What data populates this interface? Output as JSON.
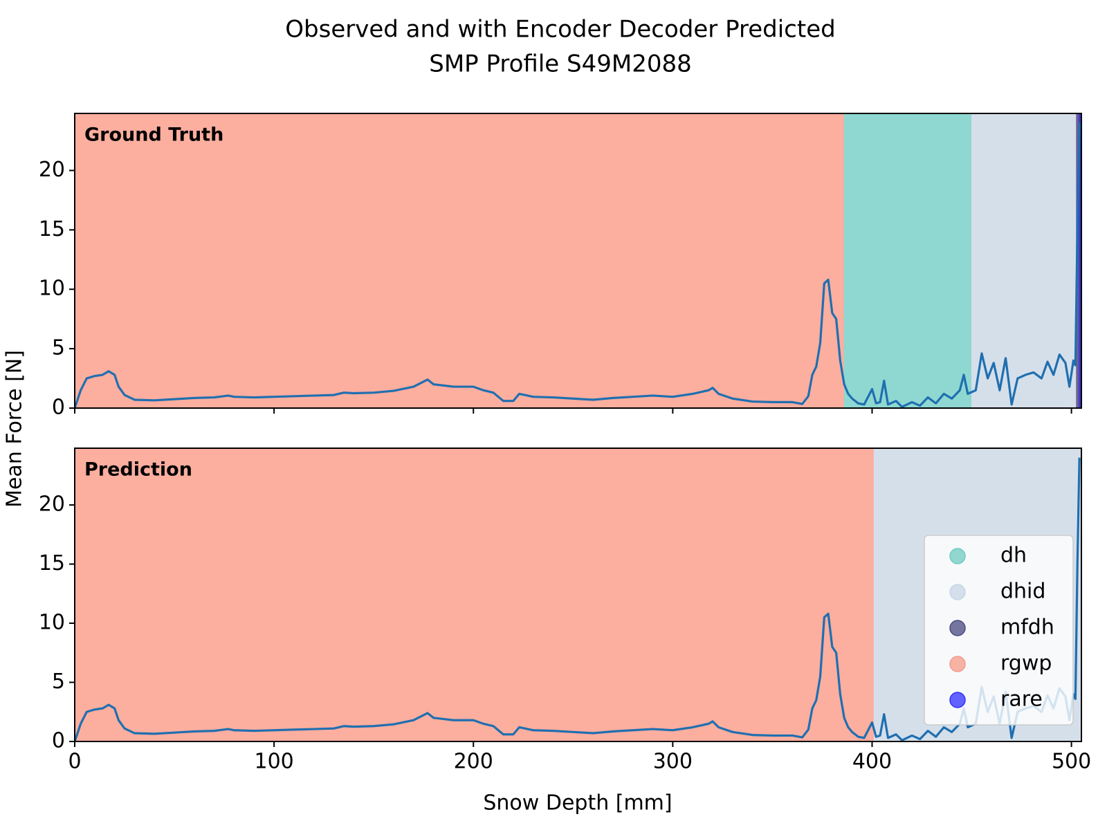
{
  "title": [
    "Observed and with Encoder Decoder Predicted",
    "SMP Profile S49M2088"
  ],
  "xlabel": "Snow Depth [mm]",
  "ylabel": "Mean Force [N]",
  "chart_data": [
    {
      "type": "line",
      "title": "Ground Truth",
      "x": [
        0,
        3,
        6,
        10,
        14,
        17,
        20,
        22,
        25,
        30,
        40,
        50,
        60,
        70,
        77,
        80,
        90,
        100,
        110,
        120,
        130,
        135,
        140,
        150,
        160,
        170,
        177,
        180,
        190,
        200,
        205,
        210,
        215,
        220,
        223,
        230,
        240,
        250,
        260,
        270,
        280,
        290,
        300,
        310,
        318,
        320,
        323,
        330,
        340,
        350,
        360,
        365,
        368,
        370,
        372,
        374,
        376,
        378,
        380,
        382,
        384,
        386,
        388,
        390,
        393,
        396,
        400,
        402,
        404,
        406,
        408,
        412,
        415,
        420,
        424,
        428,
        432,
        436,
        440,
        444,
        446,
        448,
        452,
        455,
        458,
        461,
        464,
        467,
        470,
        473,
        477,
        481,
        485,
        488,
        491,
        494,
        497,
        499,
        501,
        502,
        503,
        504
      ],
      "series": [
        {
          "color": "#1f6fb0",
          "values": [
            0,
            1.5,
            2.5,
            2.7,
            2.8,
            3.1,
            2.8,
            1.8,
            1.1,
            0.7,
            0.65,
            0.75,
            0.85,
            0.9,
            1.05,
            0.95,
            0.9,
            0.95,
            1.0,
            1.05,
            1.1,
            1.3,
            1.25,
            1.3,
            1.45,
            1.8,
            2.4,
            2.0,
            1.8,
            1.8,
            1.5,
            1.3,
            0.6,
            0.6,
            1.2,
            0.95,
            0.9,
            0.8,
            0.7,
            0.85,
            0.95,
            1.05,
            0.95,
            1.2,
            1.5,
            1.7,
            1.2,
            0.8,
            0.55,
            0.5,
            0.5,
            0.35,
            1.0,
            2.8,
            3.5,
            5.5,
            10.5,
            10.8,
            8.0,
            7.5,
            4.0,
            2.0,
            1.2,
            0.8,
            0.4,
            0.3,
            1.6,
            0.4,
            0.5,
            2.3,
            0.3,
            0.6,
            0.1,
            0.5,
            0.2,
            0.9,
            0.4,
            1.2,
            0.8,
            1.5,
            2.8,
            1.2,
            1.5,
            4.6,
            2.5,
            3.8,
            1.5,
            4.2,
            0.3,
            2.5,
            2.8,
            3.0,
            2.5,
            3.9,
            2.8,
            4.5,
            3.8,
            1.8,
            4.0,
            3.6,
            15,
            24
          ]
        }
      ],
      "spans": [
        {
          "start": 0,
          "end": 386,
          "color": "#fcae9f"
        },
        {
          "start": 386,
          "end": 450,
          "color": "#8fd8d2"
        },
        {
          "start": 450,
          "end": 502.5,
          "color": "#d5dfea"
        },
        {
          "start": 502.5,
          "end": 503.8,
          "color": "#6e5f93"
        },
        {
          "start": 503.8,
          "end": 505,
          "color": "#3b3bd0"
        }
      ],
      "xlim": [
        0,
        505
      ],
      "ylim": [
        0,
        24.8
      ],
      "yticks": [
        0,
        5,
        10,
        15,
        20
      ]
    },
    {
      "type": "line",
      "title": "Prediction",
      "x": [
        0,
        3,
        6,
        10,
        14,
        17,
        20,
        22,
        25,
        30,
        40,
        50,
        60,
        70,
        77,
        80,
        90,
        100,
        110,
        120,
        130,
        135,
        140,
        150,
        160,
        170,
        177,
        180,
        190,
        200,
        205,
        210,
        215,
        220,
        223,
        230,
        240,
        250,
        260,
        270,
        280,
        290,
        300,
        310,
        318,
        320,
        323,
        330,
        340,
        350,
        360,
        365,
        368,
        370,
        372,
        374,
        376,
        378,
        380,
        382,
        384,
        386,
        388,
        390,
        393,
        396,
        400,
        402,
        404,
        406,
        408,
        412,
        415,
        420,
        424,
        428,
        432,
        436,
        440,
        444,
        446,
        448,
        452,
        455,
        458,
        461,
        464,
        467,
        470,
        473,
        477,
        481,
        485,
        488,
        491,
        494,
        497,
        499,
        501,
        502,
        503,
        504
      ],
      "series": [
        {
          "color": "#1f6fb0",
          "values": [
            0,
            1.5,
            2.5,
            2.7,
            2.8,
            3.1,
            2.8,
            1.8,
            1.1,
            0.7,
            0.65,
            0.75,
            0.85,
            0.9,
            1.05,
            0.95,
            0.9,
            0.95,
            1.0,
            1.05,
            1.1,
            1.3,
            1.25,
            1.3,
            1.45,
            1.8,
            2.4,
            2.0,
            1.8,
            1.8,
            1.5,
            1.3,
            0.6,
            0.6,
            1.2,
            0.95,
            0.9,
            0.8,
            0.7,
            0.85,
            0.95,
            1.05,
            0.95,
            1.2,
            1.5,
            1.7,
            1.2,
            0.8,
            0.55,
            0.5,
            0.5,
            0.35,
            1.0,
            2.8,
            3.5,
            5.5,
            10.5,
            10.8,
            8.0,
            7.5,
            4.0,
            2.0,
            1.2,
            0.8,
            0.4,
            0.3,
            1.6,
            0.4,
            0.5,
            2.3,
            0.3,
            0.6,
            0.1,
            0.5,
            0.2,
            0.9,
            0.4,
            1.2,
            0.8,
            1.5,
            2.8,
            1.2,
            1.5,
            4.6,
            2.5,
            3.8,
            1.5,
            4.2,
            0.3,
            2.5,
            2.8,
            3.0,
            2.5,
            3.9,
            2.8,
            4.5,
            3.8,
            1.8,
            4.0,
            3.6,
            15,
            24
          ]
        }
      ],
      "spans": [
        {
          "start": 0,
          "end": 401,
          "color": "#fcae9f"
        },
        {
          "start": 401,
          "end": 505,
          "color": "#d5dfea"
        }
      ],
      "xlim": [
        0,
        505
      ],
      "ylim": [
        0,
        24.8
      ],
      "xticks": [
        0,
        100,
        200,
        300,
        400,
        500
      ],
      "yticks": [
        0,
        5,
        10,
        15,
        20
      ],
      "legend": [
        {
          "name": "dh",
          "color": "#6fcbc0"
        },
        {
          "name": "dhid",
          "color": "#c8d5e6"
        },
        {
          "name": "mfdh",
          "color": "#4a4a82"
        },
        {
          "name": "rgwp",
          "color": "#f59a88"
        },
        {
          "name": "rare",
          "color": "#3030ff"
        }
      ],
      "legend_loc": "lower right"
    }
  ]
}
